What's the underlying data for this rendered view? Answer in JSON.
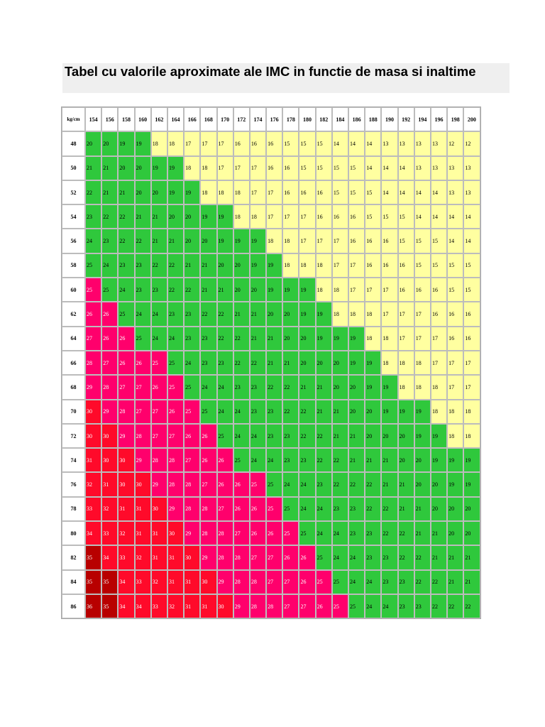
{
  "title": "Tabel cu valorile aproximate ale IMC in functie de masa si inaltime",
  "corner_label": "kg/cm",
  "heights": [
    "154",
    "156",
    "158",
    "160",
    "162",
    "164",
    "166",
    "168",
    "170",
    "172",
    "174",
    "176",
    "178",
    "180",
    "182",
    "184",
    "186",
    "188",
    "190",
    "192",
    "194",
    "196",
    "198",
    "200"
  ],
  "colors": {
    "yellow": "#ffffa0",
    "green": "#2fc83c",
    "pink": "#ff006c",
    "red": "#ff0a2a",
    "dark_red": "#b80000"
  },
  "rows": [
    {
      "mass": "48",
      "values": [
        20,
        20,
        19,
        19,
        18,
        18,
        17,
        17,
        17,
        16,
        16,
        16,
        15,
        15,
        15,
        14,
        14,
        14,
        13,
        13,
        13,
        13,
        12,
        12
      ],
      "green_from": 0,
      "yellow_from": 4
    },
    {
      "mass": "50",
      "values": [
        21,
        21,
        20,
        20,
        19,
        19,
        18,
        18,
        17,
        17,
        17,
        16,
        16,
        15,
        15,
        15,
        15,
        14,
        14,
        14,
        13,
        13,
        13,
        13
      ],
      "green_from": 0,
      "yellow_from": 6
    },
    {
      "mass": "52",
      "values": [
        22,
        21,
        21,
        20,
        20,
        19,
        19,
        18,
        18,
        18,
        17,
        17,
        16,
        16,
        16,
        15,
        15,
        15,
        14,
        14,
        14,
        14,
        13,
        13
      ],
      "green_from": 0,
      "yellow_from": 7
    },
    {
      "mass": "54",
      "values": [
        23,
        22,
        22,
        21,
        21,
        20,
        20,
        19,
        19,
        18,
        18,
        17,
        17,
        17,
        16,
        16,
        16,
        15,
        15,
        15,
        14,
        14,
        14,
        14
      ],
      "green_from": 0,
      "yellow_from": 9
    },
    {
      "mass": "56",
      "values": [
        24,
        23,
        22,
        22,
        21,
        21,
        20,
        20,
        19,
        19,
        19,
        18,
        18,
        17,
        17,
        17,
        16,
        16,
        16,
        15,
        15,
        15,
        14,
        14
      ],
      "green_from": 0,
      "yellow_from": 11
    },
    {
      "mass": "58",
      "values": [
        25,
        24,
        23,
        23,
        22,
        22,
        21,
        21,
        20,
        20,
        19,
        19,
        18,
        18,
        18,
        17,
        17,
        16,
        16,
        16,
        15,
        15,
        15,
        15
      ],
      "green_from": 0,
      "yellow_from": 12
    },
    {
      "mass": "60",
      "values": [
        25,
        25,
        24,
        23,
        23,
        22,
        22,
        21,
        21,
        20,
        20,
        19,
        19,
        19,
        18,
        18,
        17,
        17,
        17,
        16,
        16,
        16,
        15,
        15
      ],
      "green_from": 1,
      "yellow_from": 14
    },
    {
      "mass": "62",
      "values": [
        26,
        26,
        25,
        24,
        24,
        23,
        23,
        22,
        22,
        21,
        21,
        20,
        20,
        19,
        19,
        18,
        18,
        18,
        17,
        17,
        17,
        16,
        16,
        16
      ],
      "green_from": 2,
      "yellow_from": 15
    },
    {
      "mass": "64",
      "values": [
        27,
        26,
        26,
        25,
        24,
        24,
        23,
        23,
        22,
        22,
        21,
        21,
        20,
        20,
        19,
        19,
        19,
        18,
        18,
        17,
        17,
        17,
        16,
        16
      ],
      "green_from": 3,
      "yellow_from": 17
    },
    {
      "mass": "66",
      "values": [
        28,
        27,
        26,
        26,
        25,
        25,
        24,
        23,
        23,
        22,
        22,
        21,
        21,
        20,
        20,
        20,
        19,
        19,
        18,
        18,
        18,
        17,
        17,
        17
      ],
      "green_from": 5,
      "yellow_from": 18
    },
    {
      "mass": "68",
      "values": [
        29,
        28,
        27,
        27,
        26,
        25,
        25,
        24,
        24,
        23,
        23,
        22,
        22,
        21,
        21,
        20,
        20,
        19,
        19,
        18,
        18,
        18,
        17,
        17
      ],
      "green_from": 6,
      "yellow_from": 19
    },
    {
      "mass": "70",
      "values": [
        30,
        29,
        28,
        27,
        27,
        26,
        25,
        25,
        24,
        24,
        23,
        23,
        22,
        22,
        21,
        21,
        20,
        20,
        19,
        19,
        19,
        18,
        18,
        18
      ],
      "green_from": 7,
      "yellow_from": 21
    },
    {
      "mass": "72",
      "values": [
        30,
        30,
        29,
        28,
        27,
        27,
        26,
        26,
        25,
        24,
        24,
        23,
        23,
        22,
        22,
        21,
        21,
        20,
        20,
        20,
        19,
        19,
        18,
        18
      ],
      "green_from": 8,
      "yellow_from": 22
    },
    {
      "mass": "74",
      "values": [
        31,
        30,
        30,
        29,
        28,
        28,
        27,
        26,
        26,
        25,
        24,
        24,
        23,
        23,
        22,
        22,
        21,
        21,
        21,
        20,
        20,
        19,
        19,
        19
      ],
      "green_from": 9,
      "yellow_from": 24
    },
    {
      "mass": "76",
      "values": [
        32,
        31,
        30,
        30,
        29,
        28,
        28,
        27,
        26,
        26,
        25,
        25,
        24,
        24,
        23,
        22,
        22,
        22,
        21,
        21,
        20,
        20,
        19,
        19
      ],
      "green_from": 11,
      "yellow_from": 24
    },
    {
      "mass": "78",
      "values": [
        33,
        32,
        31,
        31,
        30,
        29,
        28,
        28,
        27,
        26,
        26,
        25,
        25,
        24,
        24,
        23,
        23,
        22,
        22,
        21,
        21,
        20,
        20,
        20
      ],
      "green_from": 12,
      "yellow_from": 24
    },
    {
      "mass": "80",
      "values": [
        34,
        33,
        32,
        31,
        31,
        30,
        29,
        28,
        28,
        27,
        26,
        26,
        25,
        25,
        24,
        24,
        23,
        23,
        22,
        22,
        21,
        21,
        20,
        20
      ],
      "green_from": 13,
      "yellow_from": 24
    },
    {
      "mass": "82",
      "values": [
        35,
        34,
        33,
        32,
        31,
        31,
        30,
        29,
        28,
        28,
        27,
        27,
        26,
        26,
        25,
        24,
        24,
        23,
        23,
        22,
        22,
        21,
        21,
        21
      ],
      "green_from": 14,
      "yellow_from": 24
    },
    {
      "mass": "84",
      "values": [
        35,
        35,
        34,
        33,
        32,
        31,
        31,
        30,
        29,
        28,
        28,
        27,
        27,
        26,
        25,
        25,
        24,
        24,
        23,
        23,
        22,
        22,
        21,
        21
      ],
      "green_from": 15,
      "yellow_from": 24
    },
    {
      "mass": "86",
      "values": [
        36,
        35,
        34,
        34,
        33,
        32,
        31,
        31,
        30,
        29,
        28,
        28,
        27,
        27,
        26,
        25,
        25,
        24,
        24,
        23,
        23,
        22,
        22,
        22
      ],
      "green_from": 16,
      "yellow_from": 24
    }
  ]
}
